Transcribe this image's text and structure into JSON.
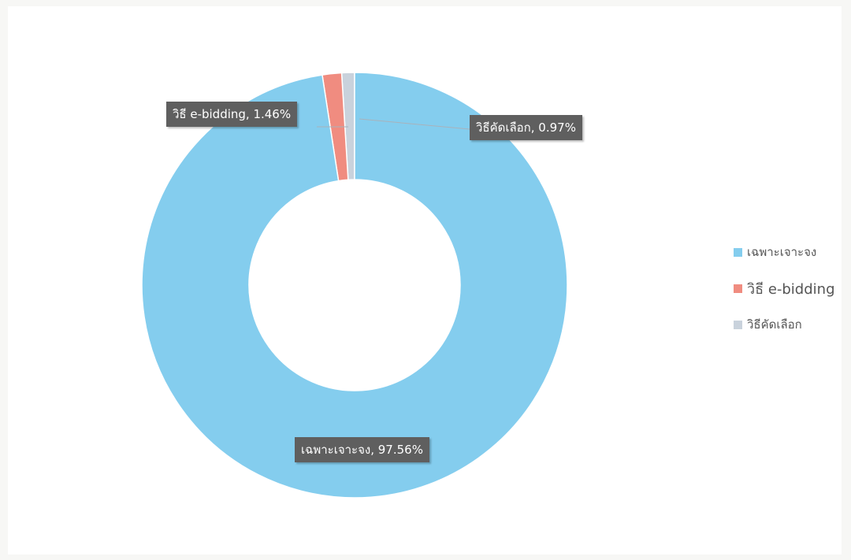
{
  "chart_data": {
    "type": "pie",
    "categories": [
      "เฉพาะเจาะจง",
      "วิธี e-bidding",
      "วิธีคัดเลือก"
    ],
    "values": [
      97.56,
      1.46,
      0.97
    ],
    "unit": "%",
    "colors": [
      "#84cdee",
      "#f08c80",
      "#c9d2dc"
    ],
    "data_labels": [
      "เฉพาะเจาะจง,  97.56%",
      "วิธี e-bidding,  1.46%",
      "วิธีคัดเลือก, 0.97%"
    ],
    "legend_placement": "right",
    "legend": [
      "เฉพาะเจาะจง",
      "วิธี e-bidding",
      "วิธีคัดเลือก"
    ]
  }
}
